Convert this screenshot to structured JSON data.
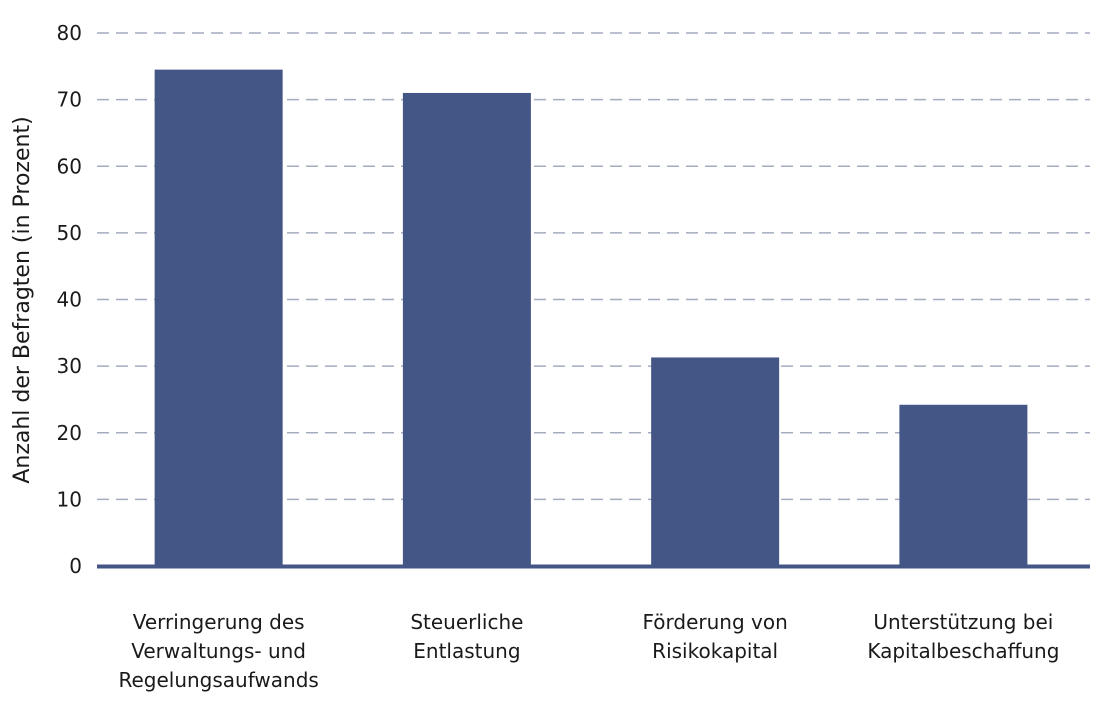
{
  "chart_data": {
    "type": "bar",
    "ylabel": "Anzahl der Befragten (in Prozent)",
    "ylim": [
      0,
      80
    ],
    "yticks": [
      0,
      10,
      20,
      30,
      40,
      50,
      60,
      70,
      80
    ],
    "grid": true,
    "categories": [
      [
        "Verringerung des",
        "Verwaltungs- und",
        "Regelungsaufwands"
      ],
      [
        "Steuerliche",
        "Entlastung"
      ],
      [
        "Förderung von",
        "Risikokapital"
      ],
      [
        "Unterstützung bei",
        "Kapitalbeschaffung"
      ]
    ],
    "values": [
      74.5,
      71,
      31.3,
      24.2
    ],
    "colors": {
      "bar": "#435685",
      "grid": "#a4acc0",
      "axis": "#435685"
    }
  }
}
